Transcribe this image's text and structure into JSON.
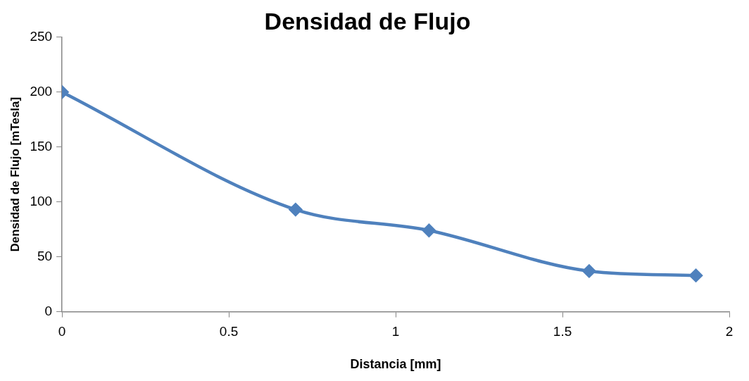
{
  "chart_data": {
    "type": "line",
    "title": "Densidad de Flujo",
    "xlabel": "Distancia [mm]",
    "ylabel": "Densidad de Flujo [mTesla]",
    "x": [
      0,
      0.7,
      1.1,
      1.58,
      1.9
    ],
    "series": [
      {
        "color": "#4f81bd",
        "values": [
          200,
          93,
          74,
          37,
          33
        ]
      }
    ],
    "xlim": [
      0,
      2
    ],
    "xticks": [
      0,
      0.5,
      1,
      1.5,
      2
    ],
    "ylim": [
      0,
      250
    ],
    "yticks": [
      0,
      50,
      100,
      150,
      200,
      250
    ],
    "grid": false,
    "legend": false,
    "marker": "diamond",
    "line_style": "solid"
  }
}
